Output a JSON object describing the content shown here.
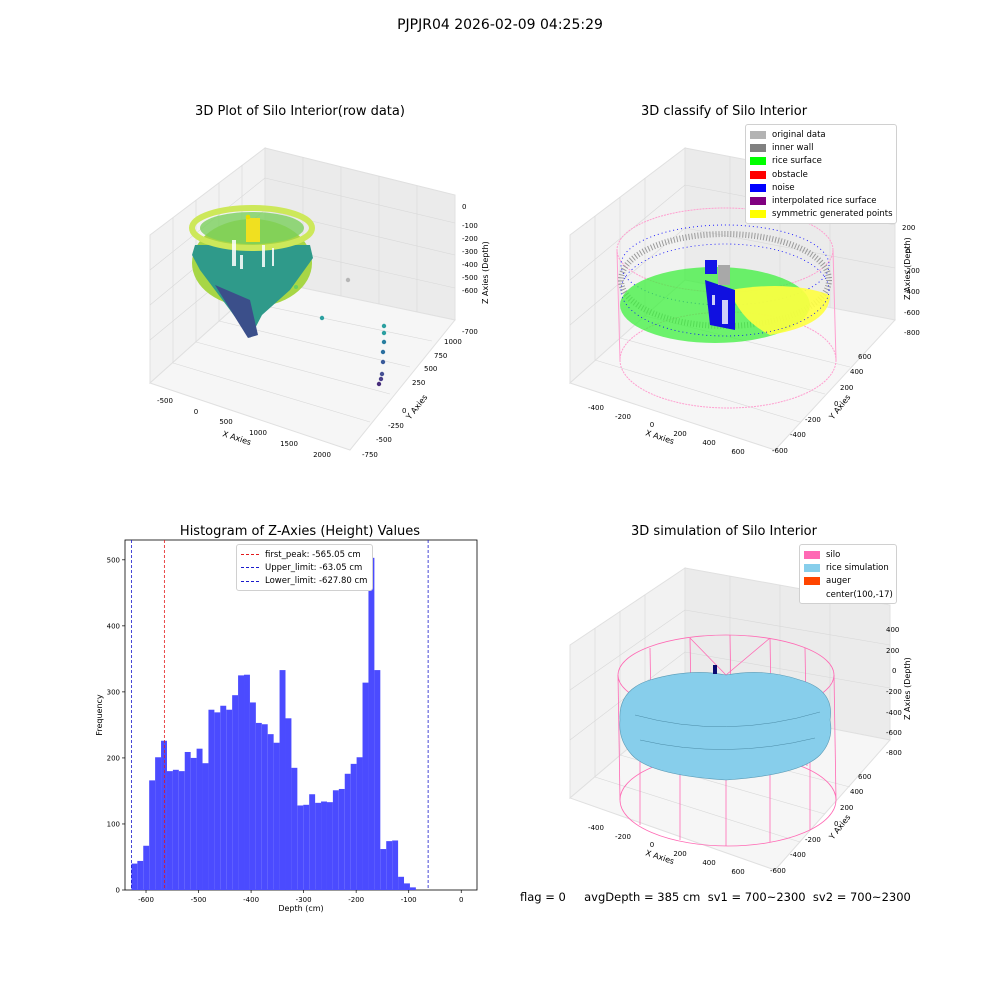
{
  "suptitle": "PJPJR04 2026-02-09 04:25:29",
  "colors": {
    "histogram_bar": "#4b4bff",
    "first_peak_line": "#e31a1c",
    "limit_line": "#1a1acc",
    "original_data": "#b3b3b3",
    "inner_wall": "#808080",
    "rice_surface": "#00ff00",
    "obstacle": "#ff0000",
    "noise": "#0000ff",
    "interpolated": "#800080",
    "symmetric": "#ffff00",
    "silo": "#ff69b4",
    "rice_sim": "#87ceeb",
    "auger": "#ff4500"
  },
  "chart_data": [
    {
      "type": "scatter",
      "title": "3D Plot of Silo Interior(row data)",
      "xlabel": "X Axies",
      "ylabel": "Y Axies",
      "zlabel": "Z Axies (Depth)",
      "x_ticks": [
        "-500",
        "0",
        "500",
        "1000",
        "1500",
        "2000"
      ],
      "y_ticks": [
        "-750",
        "-500",
        "-250",
        "0",
        "250",
        "500",
        "750",
        "1000"
      ],
      "z_ticks": [
        "0",
        "-100",
        "-200",
        "-300",
        "-400",
        "-500",
        "-600",
        "-700"
      ]
    },
    {
      "type": "scatter",
      "title": "3D classify of Silo Interior",
      "xlabel": "X Axies",
      "ylabel": "Y Axies",
      "zlabel": "Z Axies (Depth)",
      "x_ticks": [
        "-400",
        "-200",
        "0",
        "200",
        "400",
        "600"
      ],
      "y_ticks": [
        "-600",
        "-400",
        "-200",
        "0",
        "200",
        "400",
        "600"
      ],
      "z_ticks": [
        "200",
        "0",
        "-200",
        "-400",
        "-600",
        "-800"
      ],
      "legend": [
        "original data",
        "inner wall",
        "rice surface",
        "obstacle",
        "noise",
        "interpolated rice surface",
        "symmetric generated points"
      ]
    },
    {
      "type": "bar",
      "title": "Histogram of Z-Axies (Height) Values",
      "xlabel": "Depth (cm)",
      "ylabel": "Frequency",
      "xlim": [
        -640,
        30
      ],
      "ylim": [
        0,
        530
      ],
      "x_ticks": [
        -600,
        -500,
        -400,
        -300,
        -200,
        -100,
        0
      ],
      "y_ticks": [
        0,
        100,
        200,
        300,
        400,
        500
      ],
      "bin_start": -627.8,
      "bin_width": 11.28,
      "values": [
        40,
        44,
        67,
        166,
        201,
        226,
        180,
        182,
        180,
        209,
        200,
        214,
        192,
        273,
        269,
        279,
        273,
        295,
        325,
        326,
        284,
        253,
        251,
        236,
        223,
        333,
        260,
        185,
        128,
        129,
        145,
        132,
        134,
        133,
        151,
        153,
        176,
        191,
        201,
        314,
        503,
        333,
        62,
        74,
        75,
        20,
        10,
        4
      ],
      "lines": [
        {
          "label": "first_peak: -565.05 cm",
          "x": -565.05
        },
        {
          "label": "Upper_limit: -63.05 cm",
          "x": -63.05
        },
        {
          "label": "Lower_limit: -627.80 cm",
          "x": -627.8
        }
      ]
    },
    {
      "type": "scatter",
      "title": "3D simulation of Silo Interior",
      "xlabel": "X Axies",
      "ylabel": "Y Axies",
      "zlabel": "Z Axies (Depth)",
      "x_ticks": [
        "-400",
        "-200",
        "0",
        "200",
        "400",
        "600"
      ],
      "y_ticks": [
        "-600",
        "-400",
        "-200",
        "0",
        "200",
        "400",
        "600"
      ],
      "z_ticks": [
        "400",
        "200",
        "0",
        "-200",
        "-400",
        "-600",
        "-800"
      ],
      "legend": [
        "silo",
        "rice simulation",
        "auger",
        "center(100,-17)"
      ]
    }
  ],
  "footer": "flag = 0     avgDepth = 385 cm  sv1 = 700~2300  sv2 = 700~2300"
}
